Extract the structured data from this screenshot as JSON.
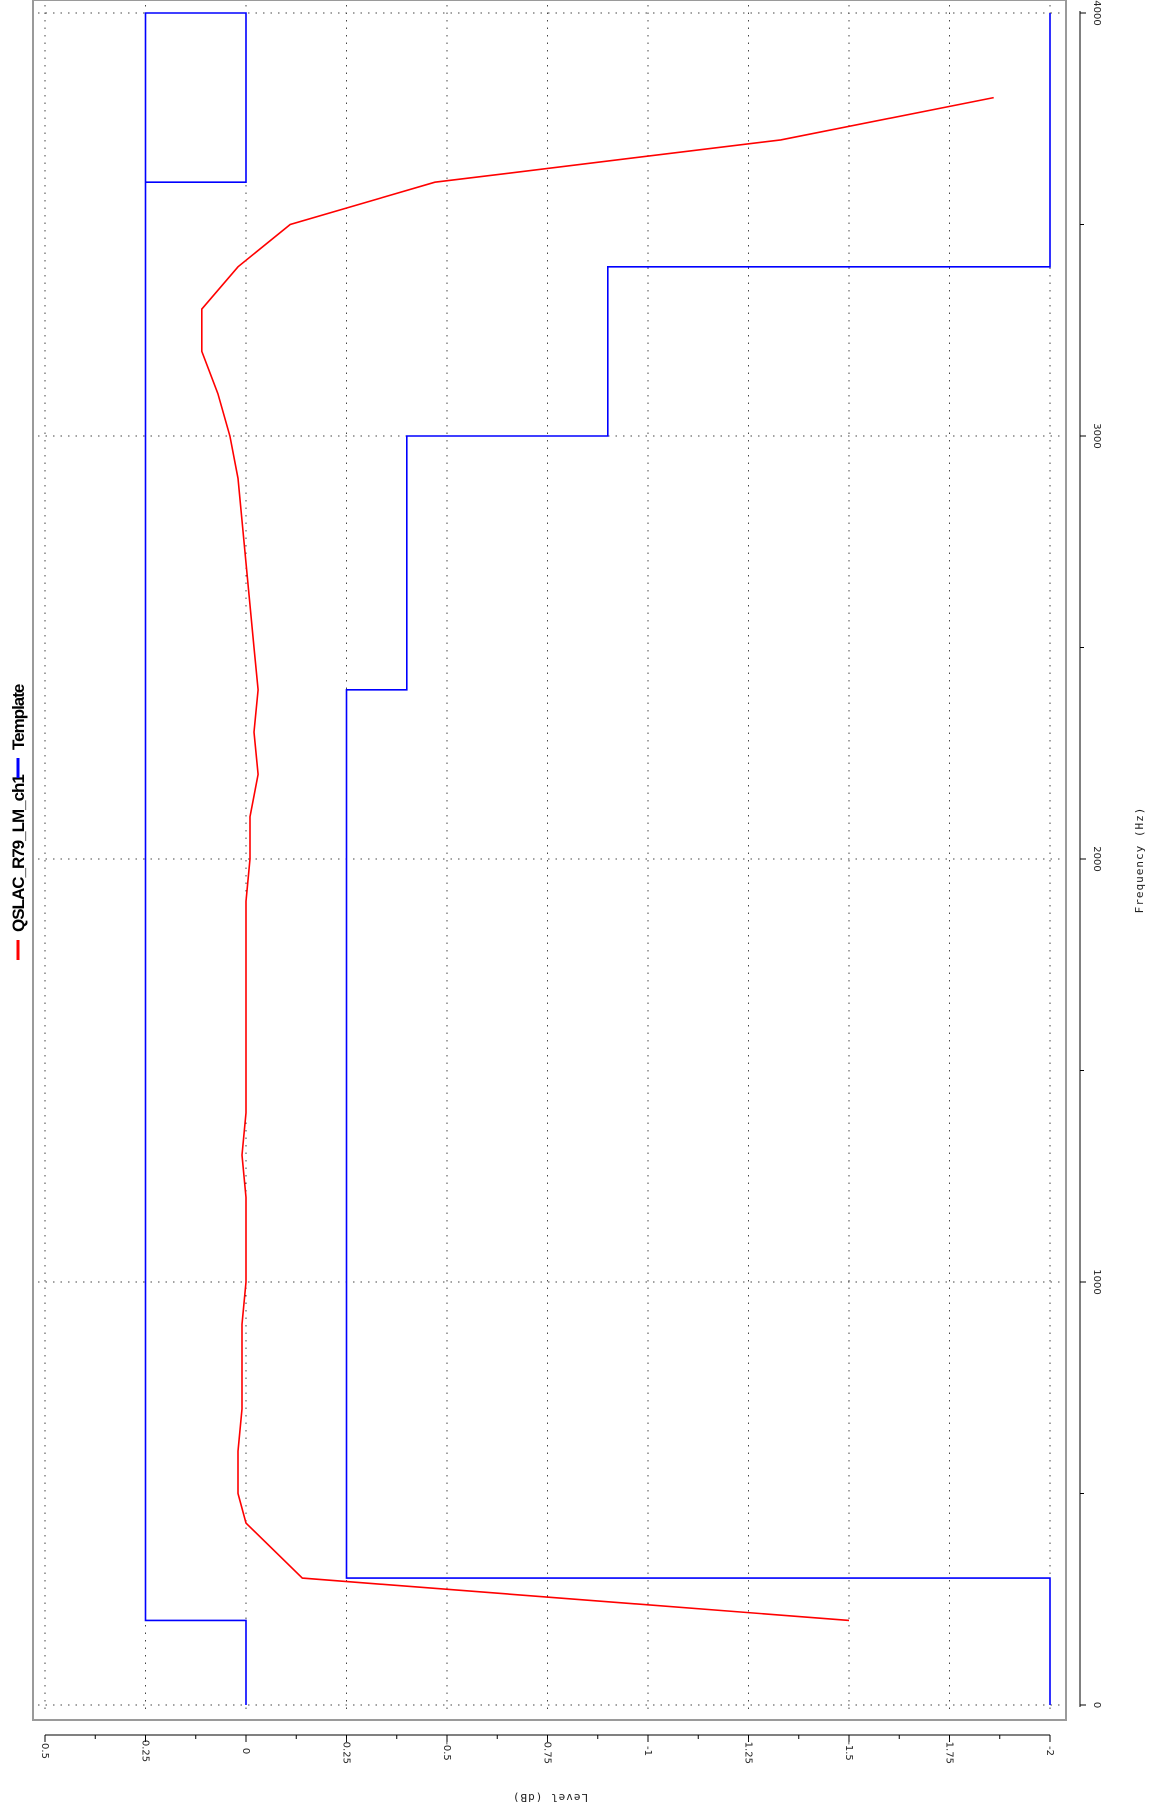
{
  "chart_data": {
    "type": "line",
    "title": "",
    "xlabel": "Frequency (Hz)",
    "ylabel": "Level (dB)",
    "xlim": [
      0,
      4000
    ],
    "ylim": [
      -2,
      0.5
    ],
    "x_ticks": [
      0,
      1000,
      2000,
      3000,
      4000
    ],
    "x_tick_labels": [
      "0",
      "1000",
      "2000",
      "3000",
      "4000"
    ],
    "y_ticks": [
      0.5,
      0.25,
      0,
      -0.25,
      -0.5,
      -0.75,
      -1,
      -1.25,
      -1.5,
      -1.75,
      -2
    ],
    "y_tick_labels": [
      "0.5",
      "0.25",
      "0",
      "-0.25",
      "-0.5",
      "-0.75",
      "-1",
      "-1.25",
      "-1.5",
      "-1.75",
      "-2"
    ],
    "grid": true,
    "legend_position": "top",
    "series": [
      {
        "name": "QSLAC_R79_LM_ch1",
        "color": "#ff0000",
        "x": [
          200,
          300,
          430,
          500,
          600,
          700,
          800,
          900,
          1000,
          1100,
          1200,
          1300,
          1400,
          1500,
          1600,
          1700,
          1800,
          1900,
          2000,
          2100,
          2200,
          2300,
          2400,
          2500,
          2600,
          2700,
          2800,
          2900,
          3000,
          3100,
          3200,
          3300,
          3400,
          3500,
          3600,
          3700,
          3800
        ],
        "y": [
          -1.5,
          -0.14,
          0.0,
          0.02,
          0.02,
          0.01,
          0.01,
          0.01,
          0.0,
          0.0,
          0.0,
          0.01,
          0.0,
          0.0,
          0.0,
          0.0,
          0.0,
          0.0,
          -0.01,
          -0.01,
          -0.03,
          -0.02,
          -0.03,
          -0.02,
          -0.01,
          0.0,
          0.01,
          0.02,
          0.04,
          0.07,
          0.11,
          0.11,
          0.02,
          -0.11,
          -0.47,
          -1.33,
          -1.86
        ]
      },
      {
        "name": "Template",
        "color": "#0000ff",
        "x": [
          0,
          200,
          200,
          4000,
          4000,
          3600,
          3600
        ],
        "y": [
          0,
          0,
          0.25,
          0.25,
          0,
          0,
          0.25
        ],
        "x_lower": [
          0,
          300,
          300,
          2400,
          2400,
          3000,
          3000,
          3400,
          3400,
          4000,
          4000
        ],
        "y_lower": [
          -2,
          -2,
          -0.25,
          -0.25,
          -0.4,
          -0.4,
          -0.9,
          -0.9,
          -2,
          -2,
          -2
        ]
      }
    ]
  }
}
